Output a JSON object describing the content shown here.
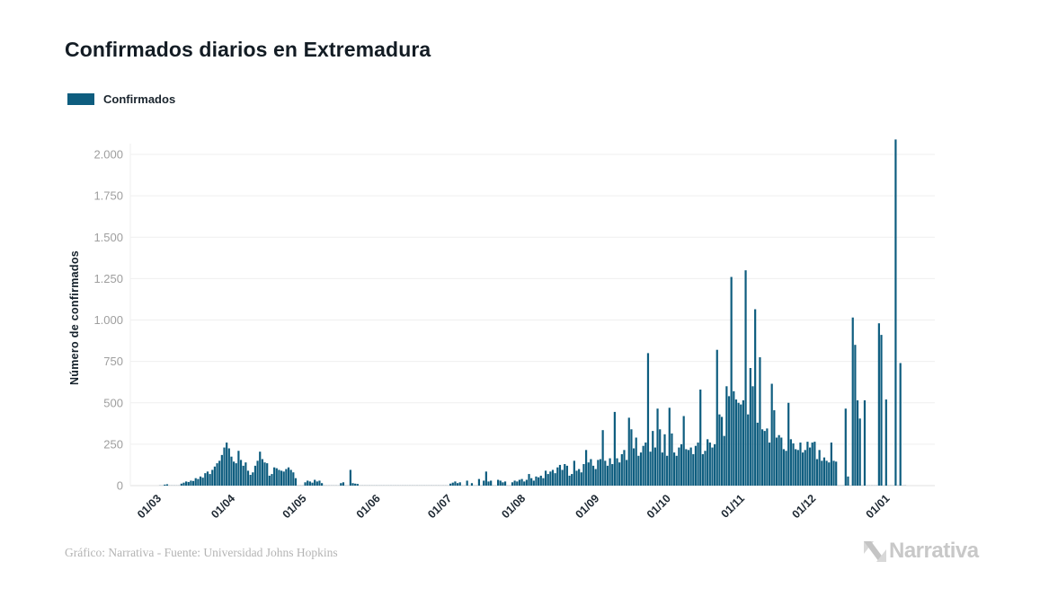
{
  "page": {
    "title": "Confirmados diarios en Extremadura",
    "footer": "Gráfico: Narrativa - Fuente: Universidad Johns Hopkins",
    "logo_text": "Narrativa"
  },
  "legend": {
    "label": "Confirmados"
  },
  "colors": {
    "bar": "#0e5d7f",
    "grid": "#efefef",
    "axis_line": "#e0e0e0",
    "zero_dash": "#b9c6cd",
    "y_tick_text": "#9e9e9e",
    "x_tick_text": "#1f2933",
    "title_text": "#131c24",
    "footer_text": "#b4b4b4",
    "logo": "#c8c8c8"
  },
  "chart_data": {
    "type": "bar",
    "title": "Confirmados diarios en Extremadura",
    "xlabel": "",
    "ylabel": "Número de confirmados",
    "series_name": "Confirmados",
    "legend_position": "top-left",
    "grid": "horizontal",
    "ylim": [
      0,
      2100
    ],
    "y_ticks": [
      {
        "value": 0,
        "label": "0"
      },
      {
        "value": 250,
        "label": "250"
      },
      {
        "value": 500,
        "label": "500"
      },
      {
        "value": 750,
        "label": "750"
      },
      {
        "value": 1000,
        "label": "1.000"
      },
      {
        "value": 1250,
        "label": "1.250"
      },
      {
        "value": 1500,
        "label": "1.500"
      },
      {
        "value": 1750,
        "label": "1.750"
      },
      {
        "value": 2000,
        "label": "2.000"
      }
    ],
    "x_ticks": [
      {
        "day_index": 0,
        "label": "01/03"
      },
      {
        "day_index": 31,
        "label": "01/04"
      },
      {
        "day_index": 61,
        "label": "01/05"
      },
      {
        "day_index": 92,
        "label": "01/06"
      },
      {
        "day_index": 122,
        "label": "01/07"
      },
      {
        "day_index": 153,
        "label": "01/08"
      },
      {
        "day_index": 184,
        "label": "01/09"
      },
      {
        "day_index": 214,
        "label": "01/10"
      },
      {
        "day_index": 245,
        "label": "01/11"
      },
      {
        "day_index": 275,
        "label": "01/12"
      },
      {
        "day_index": 306,
        "label": "01/01"
      }
    ],
    "values": [
      0,
      0,
      6,
      8,
      0,
      0,
      0,
      0,
      0,
      12,
      18,
      25,
      22,
      30,
      28,
      45,
      40,
      55,
      48,
      75,
      85,
      70,
      95,
      115,
      135,
      150,
      185,
      230,
      260,
      225,
      175,
      145,
      135,
      210,
      155,
      120,
      140,
      90,
      65,
      80,
      120,
      150,
      205,
      160,
      140,
      135,
      60,
      70,
      110,
      105,
      95,
      90,
      85,
      100,
      110,
      95,
      80,
      45,
      0,
      0,
      0,
      20,
      30,
      25,
      18,
      35,
      25,
      30,
      15,
      0,
      0,
      0,
      0,
      0,
      0,
      0,
      15,
      20,
      0,
      0,
      95,
      15,
      12,
      10,
      0,
      0,
      0,
      0,
      0,
      0,
      0,
      0,
      0,
      0,
      0,
      0,
      0,
      0,
      0,
      0,
      0,
      0,
      0,
      0,
      0,
      0,
      0,
      0,
      0,
      0,
      0,
      0,
      0,
      0,
      0,
      0,
      0,
      0,
      0,
      0,
      0,
      0,
      12,
      18,
      25,
      15,
      20,
      0,
      0,
      30,
      0,
      15,
      0,
      0,
      40,
      0,
      30,
      85,
      25,
      30,
      0,
      0,
      35,
      30,
      20,
      25,
      0,
      0,
      20,
      30,
      25,
      35,
      40,
      25,
      35,
      70,
      45,
      30,
      55,
      50,
      60,
      45,
      90,
      70,
      85,
      95,
      75,
      110,
      125,
      95,
      130,
      120,
      60,
      70,
      150,
      90,
      100,
      80,
      130,
      215,
      140,
      160,
      120,
      100,
      155,
      160,
      335,
      150,
      120,
      165,
      130,
      445,
      165,
      140,
      190,
      215,
      155,
      410,
      340,
      225,
      290,
      180,
      200,
      240,
      260,
      800,
      205,
      330,
      230,
      465,
      340,
      200,
      310,
      180,
      470,
      315,
      200,
      180,
      230,
      250,
      420,
      220,
      215,
      230,
      190,
      240,
      260,
      580,
      190,
      210,
      280,
      260,
      230,
      250,
      820,
      430,
      415,
      300,
      600,
      540,
      1260,
      570,
      520,
      500,
      490,
      515,
      1300,
      430,
      710,
      600,
      1065,
      380,
      775,
      340,
      330,
      345,
      260,
      615,
      455,
      290,
      305,
      290,
      220,
      210,
      500,
      280,
      255,
      220,
      215,
      260,
      200,
      215,
      265,
      230,
      260,
      265,
      160,
      215,
      150,
      170,
      150,
      140,
      260,
      150,
      145,
      0,
      0,
      0,
      465,
      55,
      0,
      1015,
      850,
      515,
      405,
      0,
      515,
      0,
      0,
      0,
      0,
      0,
      980,
      910,
      0,
      520,
      0,
      0,
      0,
      2090,
      0,
      740,
      0,
      0
    ]
  }
}
